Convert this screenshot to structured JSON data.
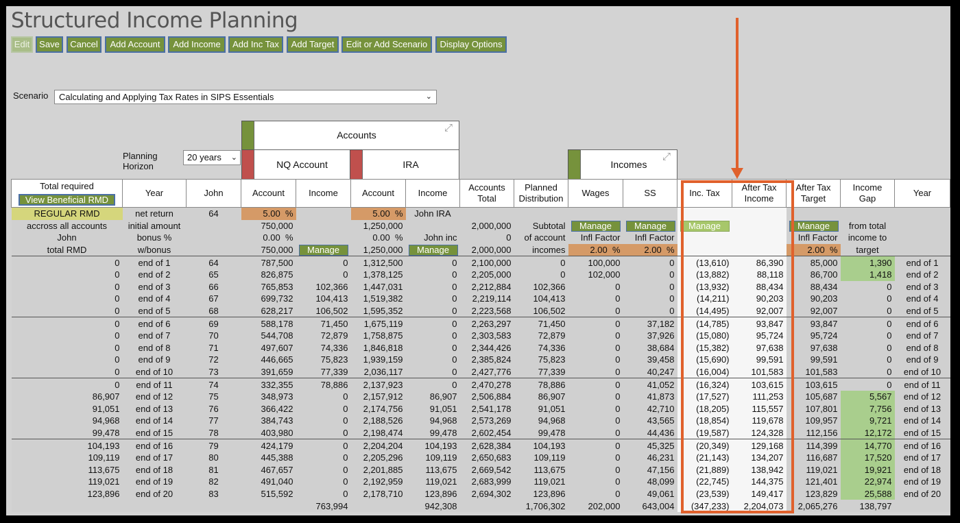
{
  "title": "Structured Income Planning",
  "toolbar": {
    "buttons": [
      "Edit",
      "Save",
      "Cancel",
      "Add Account",
      "Add Income",
      "Add Inc Tax",
      "Add Target",
      "Edit or Add Scenario",
      "Display Options"
    ]
  },
  "scenario": {
    "label": "Scenario",
    "value": "Calculating and Applying Tax Rates in SIPS Essentials"
  },
  "planning": {
    "label_1": "Planning",
    "label_2": "Horizon",
    "value": "20 years"
  },
  "groups": {
    "accounts": "Accounts",
    "nq_account": "NQ Account",
    "ira": "IRA",
    "incomes": "Incomes"
  },
  "colors": {
    "account_bar": "#76923c",
    "sub_bar": "#c0504d",
    "annotation": "#e0612c"
  },
  "headers": {
    "total_required": "Total required",
    "view_rmd": "View Beneficial RMD",
    "year": "Year",
    "john": "John",
    "nq_account": "Account",
    "nq_income": "Income",
    "ira_account": "Account",
    "ira_income": "Income",
    "accounts_total_1": "Accounts",
    "accounts_total_2": "Total",
    "planned_1": "Planned",
    "planned_2": "Distribution",
    "wages": "Wages",
    "ss": "SS",
    "inc_tax": "Inc. Tax",
    "after_tax_1": "After Tax",
    "after_tax_2": "Income",
    "target_1": "After Tax",
    "target_2": "Target",
    "gap_1": "Income",
    "gap_2": "Gap",
    "year_right": "Year"
  },
  "params": {
    "regular_rmd": "REGULAR RMD",
    "across": "accross all accounts",
    "john_1": "John",
    "john_2": "total RMD",
    "year_1": "net return",
    "year_2": "initial amount",
    "year_3": "bonus %",
    "year_4": "w/bonus",
    "age": "64",
    "nq_rate": "5.00",
    "nq_initial": "750,000",
    "nq_bonus": "0.00",
    "nq_wbonus": "750,000",
    "ira_rate": "5.00",
    "ira_initial": "1,250,000",
    "ira_bonus": "0.00",
    "ira_wbonus": "1,250,000",
    "ira_owner": "John IRA",
    "ira_inc": "John inc",
    "acct_initial": "2,000,000",
    "acct_bonus": "0",
    "acct_wbonus": "2,000,000",
    "planned_1": "Subtotal",
    "planned_2": "of account",
    "planned_3": "incomes",
    "infl_factor": "Infl Factor",
    "wages_infl": "2.00",
    "ss_infl": "2.00",
    "target_infl": "2.00",
    "gap_1": "from total",
    "gap_2": "income to",
    "gap_3": "target",
    "pct": "%",
    "manage": "Manage"
  },
  "rows": [
    [
      "0",
      "end of 1",
      "64",
      "787,500",
      "0",
      "1,312,500",
      "0",
      "2,100,000",
      "0",
      "100,000",
      "0",
      "(13,610)",
      "86,390",
      "85,000",
      "1,390",
      "end of 1"
    ],
    [
      "0",
      "end of 2",
      "65",
      "826,875",
      "0",
      "1,378,125",
      "0",
      "2,205,000",
      "0",
      "102,000",
      "0",
      "(13,882)",
      "88,118",
      "86,700",
      "1,418",
      "end of 2"
    ],
    [
      "0",
      "end of 3",
      "66",
      "765,853",
      "102,366",
      "1,447,031",
      "0",
      "2,212,884",
      "102,366",
      "0",
      "0",
      "(13,932)",
      "88,434",
      "88,434",
      "0",
      "end of 3"
    ],
    [
      "0",
      "end of 4",
      "67",
      "699,732",
      "104,413",
      "1,519,382",
      "0",
      "2,219,114",
      "104,413",
      "0",
      "0",
      "(14,211)",
      "90,203",
      "90,203",
      "0",
      "end of 4"
    ],
    [
      "0",
      "end of 5",
      "68",
      "628,217",
      "106,502",
      "1,595,352",
      "0",
      "2,223,568",
      "106,502",
      "0",
      "0",
      "(14,495)",
      "92,007",
      "92,007",
      "0",
      "end of 5"
    ],
    [
      "0",
      "end of 6",
      "69",
      "588,178",
      "71,450",
      "1,675,119",
      "0",
      "2,263,297",
      "71,450",
      "0",
      "37,182",
      "(14,785)",
      "93,847",
      "93,847",
      "0",
      "end of 6"
    ],
    [
      "0",
      "end of 7",
      "70",
      "544,708",
      "72,879",
      "1,758,875",
      "0",
      "2,303,583",
      "72,879",
      "0",
      "37,926",
      "(15,080)",
      "95,724",
      "95,724",
      "0",
      "end of 7"
    ],
    [
      "0",
      "end of 8",
      "71",
      "497,607",
      "74,336",
      "1,846,818",
      "0",
      "2,344,426",
      "74,336",
      "0",
      "38,684",
      "(15,382)",
      "97,638",
      "97,638",
      "0",
      "end of 8"
    ],
    [
      "0",
      "end of 9",
      "72",
      "446,665",
      "75,823",
      "1,939,159",
      "0",
      "2,385,824",
      "75,823",
      "0",
      "39,458",
      "(15,690)",
      "99,591",
      "99,591",
      "0",
      "end of 9"
    ],
    [
      "0",
      "end of 10",
      "73",
      "391,659",
      "77,339",
      "2,036,117",
      "0",
      "2,427,776",
      "77,339",
      "0",
      "40,247",
      "(16,004)",
      "101,583",
      "101,583",
      "0",
      "end of 10"
    ],
    [
      "0",
      "end of 11",
      "74",
      "332,355",
      "78,886",
      "2,137,923",
      "0",
      "2,470,278",
      "78,886",
      "0",
      "41,052",
      "(16,324)",
      "103,615",
      "103,615",
      "0",
      "end of 11"
    ],
    [
      "86,907",
      "end of 12",
      "75",
      "348,973",
      "0",
      "2,157,912",
      "86,907",
      "2,506,884",
      "86,907",
      "0",
      "41,873",
      "(17,527)",
      "111,253",
      "105,687",
      "5,567",
      "end of 12"
    ],
    [
      "91,051",
      "end of 13",
      "76",
      "366,422",
      "0",
      "2,174,756",
      "91,051",
      "2,541,178",
      "91,051",
      "0",
      "42,710",
      "(18,205)",
      "115,557",
      "107,801",
      "7,756",
      "end of 13"
    ],
    [
      "94,968",
      "end of 14",
      "77",
      "384,743",
      "0",
      "2,188,526",
      "94,968",
      "2,573,269",
      "94,968",
      "0",
      "43,565",
      "(18,854)",
      "119,678",
      "109,957",
      "9,721",
      "end of 14"
    ],
    [
      "99,478",
      "end of 15",
      "78",
      "403,980",
      "0",
      "2,198,474",
      "99,478",
      "2,602,454",
      "99,478",
      "0",
      "44,436",
      "(19,587)",
      "124,328",
      "112,156",
      "12,172",
      "end of 15"
    ],
    [
      "104,193",
      "end of 16",
      "79",
      "424,179",
      "0",
      "2,204,204",
      "104,193",
      "2,628,384",
      "104,193",
      "0",
      "45,325",
      "(20,349)",
      "129,168",
      "114,399",
      "14,770",
      "end of 16"
    ],
    [
      "109,119",
      "end of 17",
      "80",
      "445,388",
      "0",
      "2,205,296",
      "109,119",
      "2,650,683",
      "109,119",
      "0",
      "46,231",
      "(21,143)",
      "134,207",
      "116,687",
      "17,520",
      "end of 17"
    ],
    [
      "113,675",
      "end of 18",
      "81",
      "467,657",
      "0",
      "2,201,885",
      "113,675",
      "2,669,542",
      "113,675",
      "0",
      "47,156",
      "(21,889)",
      "138,942",
      "119,021",
      "19,921",
      "end of 18"
    ],
    [
      "119,021",
      "end of 19",
      "82",
      "491,040",
      "0",
      "2,192,959",
      "119,021",
      "2,683,999",
      "119,021",
      "0",
      "48,099",
      "(22,745)",
      "144,375",
      "121,401",
      "22,974",
      "end of 19"
    ],
    [
      "123,896",
      "end of 20",
      "83",
      "515,592",
      "0",
      "2,178,710",
      "123,896",
      "2,694,302",
      "123,896",
      "0",
      "49,061",
      "(23,539)",
      "149,417",
      "123,829",
      "25,588",
      "end of 20"
    ]
  ],
  "totals": {
    "nq_income": "763,994",
    "ira_income": "942,308",
    "planned": "1,706,302",
    "wages": "202,000",
    "ss": "643,004",
    "inc_tax": "(347,233)",
    "after_tax": "2,204,073",
    "target": "2,065,276",
    "gap": "138,797"
  }
}
